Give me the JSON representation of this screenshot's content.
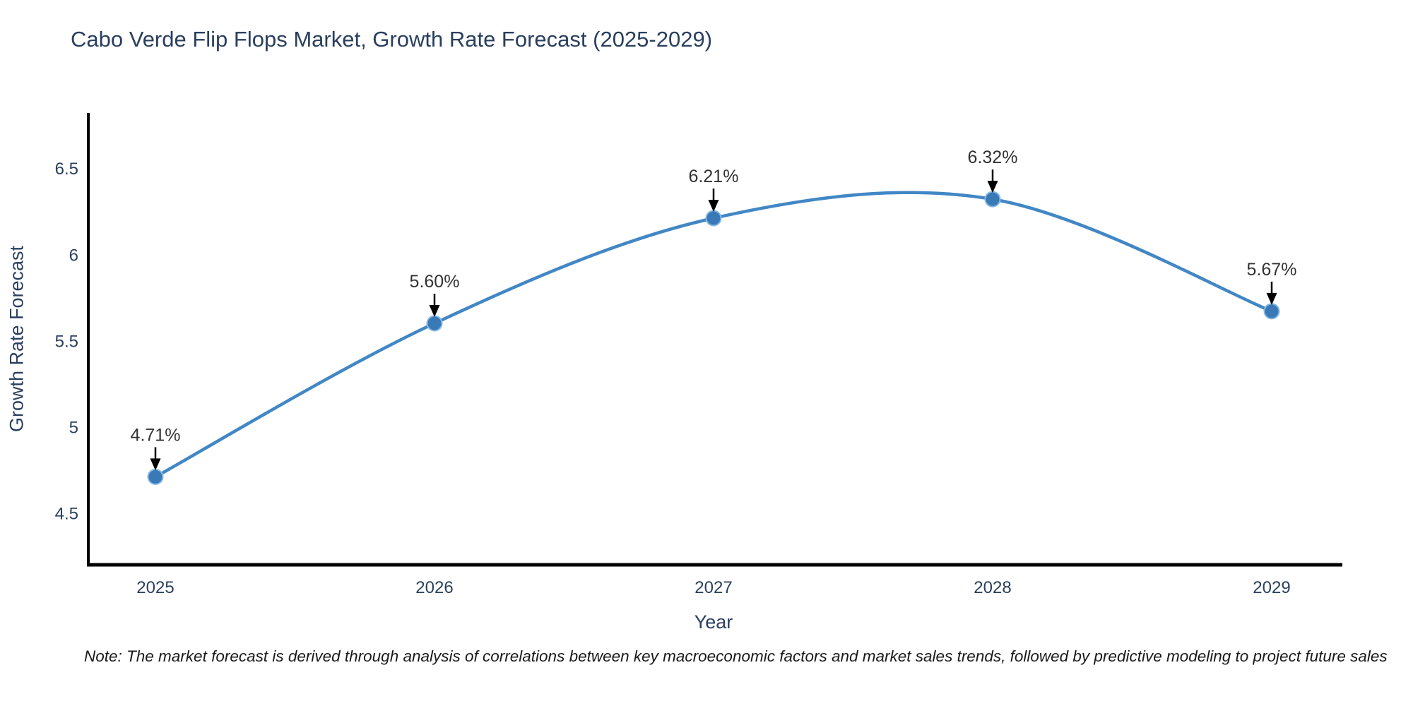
{
  "title": "Cabo Verde Flip Flops Market, Growth Rate Forecast (2025-2029)",
  "note": "Note: The market forecast is derived through analysis of correlations between key macroeconomic factors and market sales trends, followed by predictive modeling to project future sales",
  "chart_data": {
    "type": "line",
    "title": "Cabo Verde Flip Flops Market, Growth Rate Forecast (2025-2029)",
    "xlabel": "Year",
    "ylabel": "Growth Rate Forecast",
    "categories": [
      "2025",
      "2026",
      "2027",
      "2028",
      "2029"
    ],
    "values": [
      4.71,
      5.6,
      6.21,
      6.32,
      5.67
    ],
    "point_labels": [
      "4.71%",
      "5.60%",
      "6.21%",
      "6.32%",
      "5.67%"
    ],
    "yticks": [
      "4.5",
      "5",
      "5.5",
      "6",
      "6.5"
    ],
    "ytick_values": [
      4.5,
      5,
      5.5,
      6,
      6.5
    ],
    "ylim": [
      4.2,
      6.82
    ],
    "grid": false,
    "legend": "none",
    "curve": "spline",
    "markers": true,
    "colors": {
      "line": "#4287c5",
      "marker_fill": "#3a79b7",
      "marker_edge": "#85b8e0",
      "axis_line": "#000000",
      "tick_text": "#2a3f5f",
      "annotation_text": "#333333",
      "annotation_arrow": "#000000"
    }
  }
}
